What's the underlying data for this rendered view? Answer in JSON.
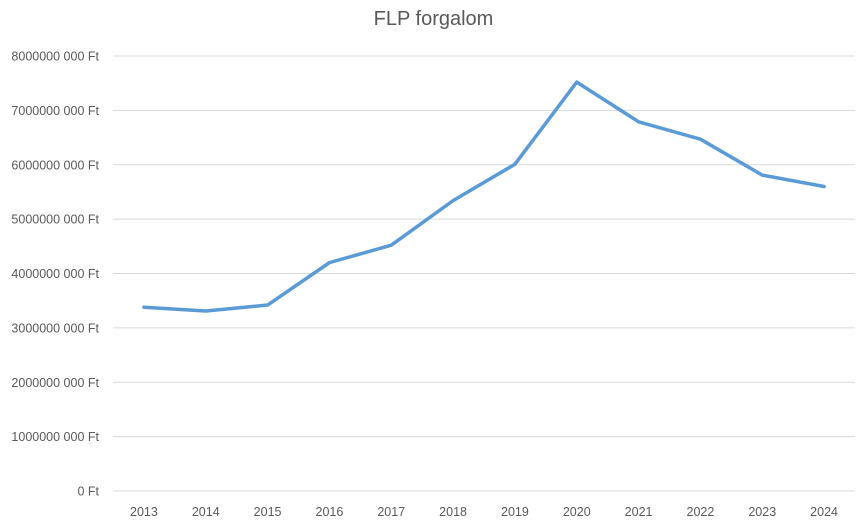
{
  "chart_data": {
    "type": "line",
    "title": "FLP forgalom",
    "xlabel": "",
    "ylabel": "",
    "x": [
      "2013",
      "2014",
      "2015",
      "2016",
      "2017",
      "2018",
      "2019",
      "2020",
      "2021",
      "2022",
      "2023",
      "2024"
    ],
    "series": [
      {
        "values": [
          3380000000,
          3310000000,
          3420000000,
          4200000000,
          4520000000,
          5340000000,
          6010000000,
          7520000000,
          6790000000,
          6470000000,
          5810000000,
          5600000000
        ],
        "color": "#5b9bd5"
      }
    ],
    "ylim": [
      0,
      8000000000
    ],
    "yticks": [
      0,
      1000000000,
      2000000000,
      3000000000,
      4000000000,
      5000000000,
      6000000000,
      7000000000,
      8000000000
    ],
    "ytick_labels": [
      "0 Ft",
      "1000000 000 Ft",
      "2000000 000 Ft",
      "3000000 000 Ft",
      "4000000 000 Ft",
      "5000000 000 Ft",
      "6000000 000 Ft",
      "7000000 000 Ft",
      "8000000 000 Ft"
    ],
    "grid": true,
    "legend": "none",
    "colors": {
      "line": "#5b9bd5",
      "grid": "#d9d9d9",
      "text": "#595959",
      "axis": "#d9d9d9"
    }
  }
}
